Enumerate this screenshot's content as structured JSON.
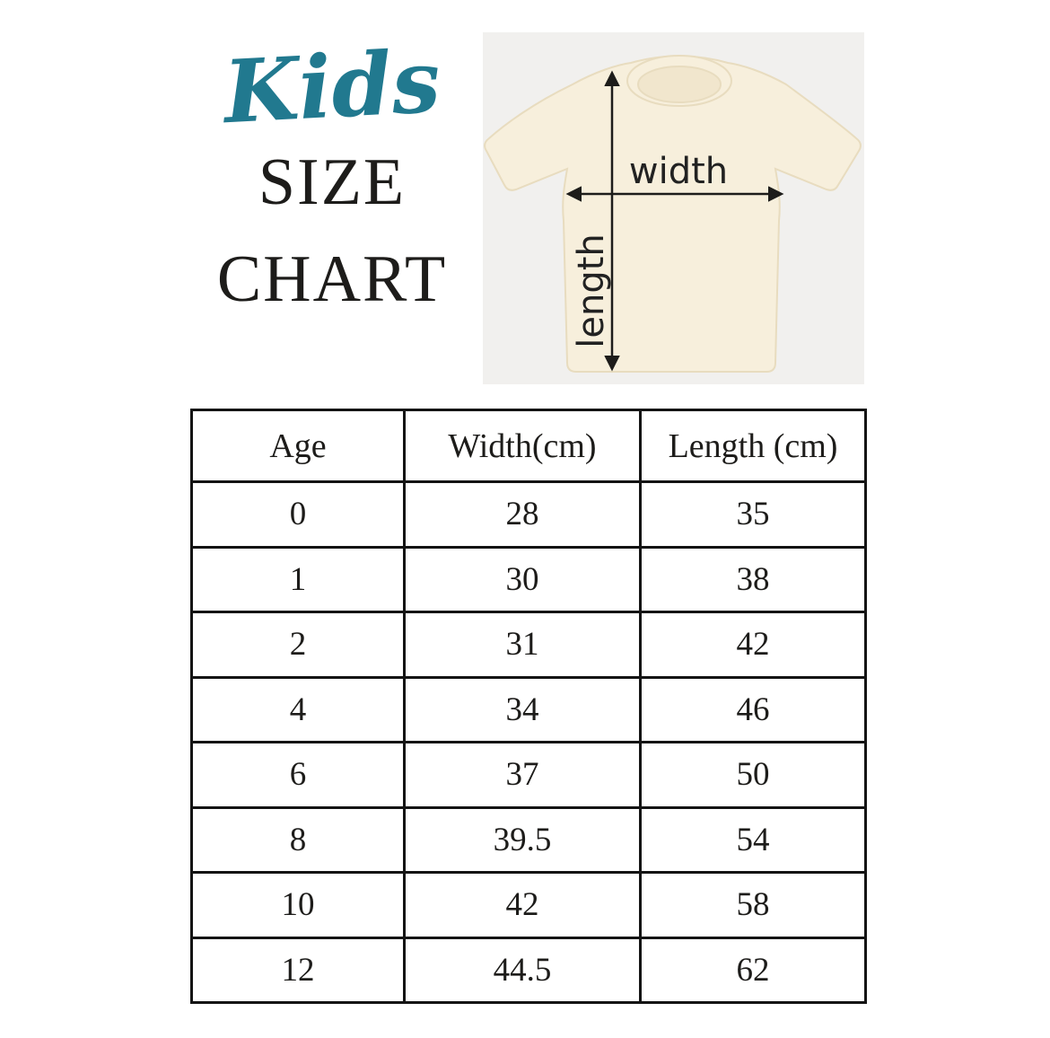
{
  "title": {
    "script": "Kids",
    "line1": "SIZE",
    "line2": "CHART"
  },
  "diagram": {
    "width_label": "width",
    "length_label": "length"
  },
  "colors": {
    "accent": "#21798f",
    "ink": "#1d1c1a",
    "border": "#141414",
    "photo-bg": "#f1f0ee",
    "shirt": "#f7efdc",
    "shirt-line": "#e8dcbf",
    "shirt-inner": "#f1e6cd"
  },
  "chart_data": {
    "type": "table",
    "title": "Kids SIZE CHART",
    "columns": [
      "Age",
      "Width(cm)",
      "Length (cm)"
    ],
    "rows": [
      [
        "0",
        "28",
        "35"
      ],
      [
        "1",
        "30",
        "38"
      ],
      [
        "2",
        "31",
        "42"
      ],
      [
        "4",
        "34",
        "46"
      ],
      [
        "6",
        "37",
        "50"
      ],
      [
        "8",
        "39.5",
        "54"
      ],
      [
        "10",
        "42",
        "58"
      ],
      [
        "12",
        "44.5",
        "62"
      ]
    ]
  }
}
